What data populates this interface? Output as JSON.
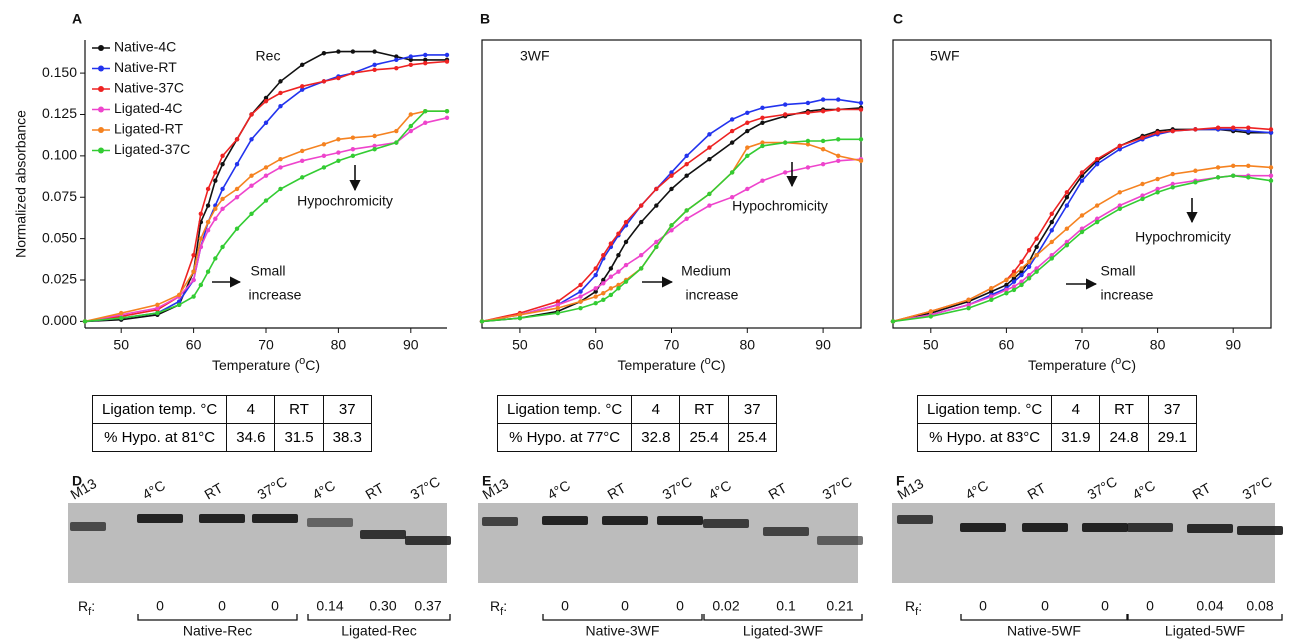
{
  "chart_data": [
    {
      "type": "line",
      "panel": "A",
      "title": "Rec",
      "box": false,
      "legend": "top-left",
      "ylabel": "Normalized absorbance",
      "xlabel": [
        "Temperature (",
        "o",
        "C)"
      ],
      "xlim": [
        45,
        95
      ],
      "ylim": [
        -0.004,
        0.17
      ],
      "xticks": [
        50,
        60,
        70,
        80,
        90
      ],
      "yticks": [
        {
          "value": 0,
          "label": "0.000"
        },
        {
          "value": 0.025,
          "label": "0.025"
        },
        {
          "value": 0.05,
          "label": "0.050"
        },
        {
          "value": 0.075,
          "label": "0.075"
        },
        {
          "value": 0.1,
          "label": "0.100"
        },
        {
          "value": 0.125,
          "label": "0.125"
        },
        {
          "value": 0.15,
          "label": "0.150"
        }
      ],
      "x": [
        45,
        50,
        55,
        58,
        60,
        61,
        62,
        63,
        64,
        66,
        68,
        70,
        72,
        75,
        78,
        80,
        82,
        85,
        88,
        90,
        92,
        95
      ],
      "series": [
        {
          "name": "Native-4C",
          "color": "#111111",
          "values": [
            0,
            0.001,
            0.004,
            0.01,
            0.03,
            0.06,
            0.07,
            0.085,
            0.095,
            0.11,
            0.125,
            0.135,
            0.145,
            0.155,
            0.162,
            0.163,
            0.163,
            0.163,
            0.16,
            0.158,
            0.158,
            0.158
          ]
        },
        {
          "name": "Native-RT",
          "color": "#2233ee",
          "values": [
            0,
            0.002,
            0.005,
            0.012,
            0.025,
            0.045,
            0.06,
            0.07,
            0.08,
            0.095,
            0.11,
            0.12,
            0.13,
            0.14,
            0.145,
            0.148,
            0.15,
            0.155,
            0.158,
            0.16,
            0.161,
            0.161
          ]
        },
        {
          "name": "Native-37C",
          "color": "#ee2222",
          "values": [
            0,
            0.003,
            0.007,
            0.015,
            0.04,
            0.065,
            0.08,
            0.09,
            0.1,
            0.11,
            0.125,
            0.133,
            0.138,
            0.142,
            0.145,
            0.147,
            0.15,
            0.152,
            0.153,
            0.155,
            0.156,
            0.157
          ]
        },
        {
          "name": "Ligated-4C",
          "color": "#ee44cc",
          "values": [
            0,
            0.004,
            0.008,
            0.015,
            0.025,
            0.045,
            0.055,
            0.062,
            0.068,
            0.075,
            0.082,
            0.088,
            0.093,
            0.097,
            0.1,
            0.102,
            0.104,
            0.106,
            0.108,
            0.115,
            0.12,
            0.123
          ]
        },
        {
          "name": "Ligated-RT",
          "color": "#f58220",
          "values": [
            0,
            0.005,
            0.01,
            0.016,
            0.03,
            0.05,
            0.06,
            0.068,
            0.074,
            0.08,
            0.088,
            0.093,
            0.098,
            0.103,
            0.107,
            0.11,
            0.111,
            0.112,
            0.115,
            0.125,
            0.127,
            0.127
          ]
        },
        {
          "name": "Ligated-37C",
          "color": "#33cc33",
          "values": [
            0,
            0.002,
            0.005,
            0.01,
            0.015,
            0.022,
            0.03,
            0.038,
            0.045,
            0.056,
            0.065,
            0.073,
            0.08,
            0.087,
            0.093,
            0.097,
            0.1,
            0.104,
            0.108,
            0.118,
            0.127,
            0.127
          ]
        }
      ],
      "annotations": [
        {
          "lines": [
            "Hypochromicity"
          ]
        },
        {
          "lines": [
            "Small",
            "increase"
          ]
        }
      ]
    },
    {
      "type": "line",
      "panel": "B",
      "title": "3WF",
      "box": true,
      "xlabel": [
        "Temperature (",
        "o",
        "C)"
      ],
      "xlim": [
        45,
        95
      ],
      "ylim": [
        -0.004,
        0.17
      ],
      "xticks": [
        50,
        60,
        70,
        80,
        90
      ],
      "x": [
        45,
        50,
        55,
        58,
        60,
        61,
        62,
        63,
        64,
        66,
        68,
        70,
        72,
        75,
        78,
        80,
        82,
        85,
        88,
        90,
        92,
        95
      ],
      "series": [
        {
          "color": "#111111",
          "values": [
            0,
            0.002,
            0.006,
            0.012,
            0.018,
            0.025,
            0.032,
            0.04,
            0.048,
            0.06,
            0.07,
            0.08,
            0.088,
            0.098,
            0.108,
            0.115,
            0.12,
            0.124,
            0.127,
            0.128,
            0.128,
            0.129
          ]
        },
        {
          "color": "#2233ee",
          "values": [
            0,
            0.004,
            0.01,
            0.018,
            0.028,
            0.038,
            0.045,
            0.052,
            0.058,
            0.07,
            0.08,
            0.09,
            0.1,
            0.113,
            0.122,
            0.126,
            0.129,
            0.131,
            0.132,
            0.134,
            0.134,
            0.132
          ]
        },
        {
          "color": "#ee2222",
          "values": [
            0,
            0.005,
            0.012,
            0.022,
            0.032,
            0.04,
            0.047,
            0.053,
            0.06,
            0.07,
            0.08,
            0.088,
            0.095,
            0.105,
            0.115,
            0.12,
            0.123,
            0.125,
            0.126,
            0.127,
            0.128,
            0.128
          ]
        },
        {
          "color": "#ee44cc",
          "values": [
            0,
            0.004,
            0.01,
            0.015,
            0.02,
            0.023,
            0.027,
            0.03,
            0.034,
            0.04,
            0.048,
            0.055,
            0.062,
            0.07,
            0.075,
            0.08,
            0.085,
            0.09,
            0.093,
            0.095,
            0.097,
            0.098
          ]
        },
        {
          "color": "#f58220",
          "values": [
            0,
            0.004,
            0.008,
            0.012,
            0.015,
            0.017,
            0.02,
            0.022,
            0.025,
            0.032,
            0.045,
            0.058,
            0.067,
            0.077,
            0.09,
            0.105,
            0.108,
            0.108,
            0.107,
            0.104,
            0.1,
            0.097
          ]
        },
        {
          "color": "#33cc33",
          "values": [
            0,
            0.002,
            0.005,
            0.008,
            0.011,
            0.013,
            0.016,
            0.02,
            0.024,
            0.032,
            0.045,
            0.058,
            0.067,
            0.077,
            0.09,
            0.1,
            0.106,
            0.108,
            0.109,
            0.109,
            0.11,
            0.11
          ]
        }
      ],
      "annotations": [
        {
          "lines": [
            "Hypochromicity"
          ]
        },
        {
          "lines": [
            "Medium",
            "increase"
          ]
        }
      ]
    },
    {
      "type": "line",
      "panel": "C",
      "title": "5WF",
      "box": true,
      "xlabel": [
        "Temperature (",
        "o",
        "C)"
      ],
      "xlim": [
        45,
        95
      ],
      "ylim": [
        -0.004,
        0.17
      ],
      "xticks": [
        50,
        60,
        70,
        80,
        90
      ],
      "x": [
        45,
        50,
        55,
        58,
        60,
        61,
        62,
        63,
        64,
        66,
        68,
        70,
        72,
        75,
        78,
        80,
        82,
        85,
        88,
        90,
        92,
        95
      ],
      "series": [
        {
          "color": "#111111",
          "values": [
            0,
            0.005,
            0.012,
            0.018,
            0.022,
            0.026,
            0.03,
            0.036,
            0.045,
            0.06,
            0.075,
            0.088,
            0.097,
            0.106,
            0.112,
            0.115,
            0.116,
            0.116,
            0.116,
            0.115,
            0.114,
            0.114
          ]
        },
        {
          "color": "#2233ee",
          "values": [
            0,
            0.004,
            0.01,
            0.016,
            0.02,
            0.024,
            0.028,
            0.033,
            0.04,
            0.055,
            0.07,
            0.085,
            0.095,
            0.104,
            0.11,
            0.113,
            0.115,
            0.116,
            0.116,
            0.116,
            0.115,
            0.114
          ]
        },
        {
          "color": "#ee2222",
          "values": [
            0,
            0.006,
            0.013,
            0.02,
            0.025,
            0.03,
            0.036,
            0.043,
            0.05,
            0.065,
            0.078,
            0.09,
            0.098,
            0.106,
            0.111,
            0.114,
            0.115,
            0.116,
            0.117,
            0.117,
            0.117,
            0.116
          ]
        },
        {
          "color": "#ee44cc",
          "values": [
            0,
            0.004,
            0.01,
            0.015,
            0.019,
            0.021,
            0.024,
            0.028,
            0.032,
            0.04,
            0.048,
            0.056,
            0.062,
            0.07,
            0.076,
            0.08,
            0.083,
            0.085,
            0.087,
            0.088,
            0.088,
            0.088
          ]
        },
        {
          "color": "#f58220",
          "values": [
            0,
            0.006,
            0.013,
            0.02,
            0.025,
            0.028,
            0.032,
            0.036,
            0.04,
            0.048,
            0.056,
            0.064,
            0.07,
            0.078,
            0.083,
            0.086,
            0.089,
            0.091,
            0.093,
            0.094,
            0.094,
            0.093
          ]
        },
        {
          "color": "#33cc33",
          "values": [
            0,
            0.003,
            0.008,
            0.013,
            0.017,
            0.019,
            0.022,
            0.026,
            0.03,
            0.038,
            0.046,
            0.054,
            0.06,
            0.068,
            0.074,
            0.078,
            0.081,
            0.084,
            0.087,
            0.088,
            0.087,
            0.085
          ]
        }
      ],
      "annotations": [
        {
          "lines": [
            "Hypochromicity"
          ]
        },
        {
          "lines": [
            "Small",
            "increase"
          ]
        }
      ]
    }
  ],
  "tables": [
    {
      "rows": [
        [
          "Ligation temp. °C",
          4,
          "RT",
          37
        ],
        [
          "% Hypo. at 81°C",
          34.6,
          31.5,
          38.3
        ]
      ]
    },
    {
      "rows": [
        [
          "Ligation temp. °C",
          4,
          "RT",
          37
        ],
        [
          "% Hypo. at 77°C",
          32.8,
          25.4,
          25.4
        ]
      ]
    },
    {
      "rows": [
        [
          "Ligation temp. °C",
          4,
          "RT",
          37
        ],
        [
          "% Hypo. at 83°C",
          31.9,
          24.8,
          29.1
        ]
      ]
    }
  ],
  "gels": [
    {
      "panel": "D",
      "lanes": [
        "M13",
        "4°C",
        "RT",
        "37°C",
        "4°C",
        "RT",
        "37°C"
      ],
      "rf_label": [
        "R",
        "f",
        ":"
      ],
      "rf_values": [
        "0",
        "0",
        "0",
        "0.14",
        "0.30",
        "0.37"
      ],
      "groups": [
        "Native-Rec",
        "Ligated-Rec"
      ]
    },
    {
      "panel": "E",
      "lanes": [
        "M13",
        "4°C",
        "RT",
        "37°C",
        "4°C",
        "RT",
        "37°C"
      ],
      "rf_label": [
        "R",
        "f",
        ":"
      ],
      "rf_values": [
        "0",
        "0",
        "0",
        "0.02",
        "0.1",
        "0.21"
      ],
      "groups": [
        "Native-3WF",
        "Ligated-3WF"
      ]
    },
    {
      "panel": "F",
      "lanes": [
        "M13",
        "4°C",
        "RT",
        "37°C",
        "4°C",
        "RT",
        "37°C"
      ],
      "rf_label": [
        "R",
        "f",
        ":"
      ],
      "rf_values": [
        "0",
        "0",
        "0",
        "0",
        "0.04",
        "0.08"
      ],
      "groups": [
        "Native-5WF",
        "Ligated-5WF"
      ]
    }
  ]
}
